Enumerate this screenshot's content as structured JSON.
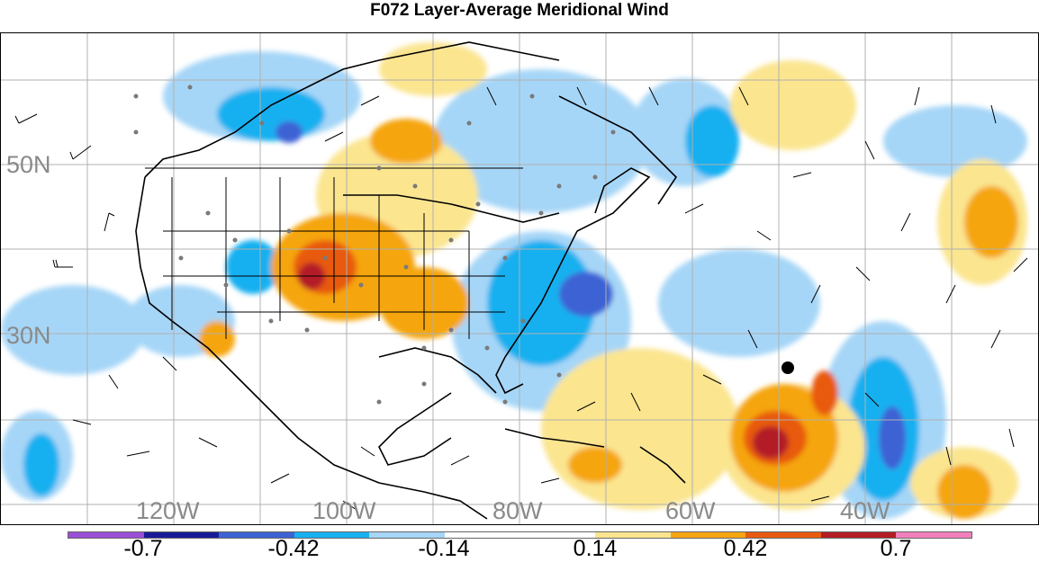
{
  "title": "F072 Layer-Average Meridional Wind",
  "lat_labels": [
    "50N",
    "30N"
  ],
  "lon_labels": [
    "120W",
    "100W",
    "80W",
    "60W",
    "40W"
  ],
  "colorbar": {
    "colors": [
      "#9b4fd6",
      "#1a1a99",
      "#3d62d4",
      "#17b0f0",
      "#a6d6f7",
      "#ffffff",
      "#ffffff",
      "#fbe58f",
      "#f5a511",
      "#e85a0f",
      "#b31e25",
      "#f27fbb"
    ],
    "labels": [
      "-0.7",
      "-0.42",
      "-0.14",
      "0.14",
      "0.42",
      "0.7"
    ]
  }
}
